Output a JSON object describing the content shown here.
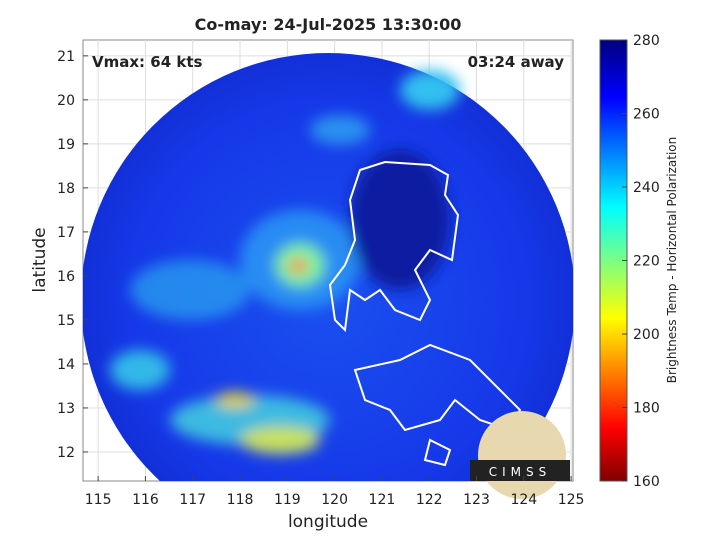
{
  "chart_data": {
    "type": "map",
    "title": "Co-may: 24-Jul-2025 13:30:00",
    "annotations": [
      "Vmax: 64 kts",
      "03:24 away"
    ],
    "xlabel": "longitude",
    "ylabel": "latitude",
    "xlim": [
      114.68,
      125.04
    ],
    "xticks": [
      115,
      116,
      117,
      118,
      119,
      120,
      121,
      122,
      123,
      124,
      125
    ],
    "ylim": [
      11.34,
      21.36
    ],
    "yticks": [
      12,
      13,
      14,
      15,
      16,
      17,
      18,
      19,
      20,
      21
    ],
    "grid": true,
    "colorbar": {
      "label": "Brightness Temp - Horizontal Polarization",
      "lim": [
        160,
        280
      ],
      "ticks": [
        160,
        180,
        200,
        220,
        240,
        260,
        280
      ]
    },
    "logo": "CIMSS"
  }
}
